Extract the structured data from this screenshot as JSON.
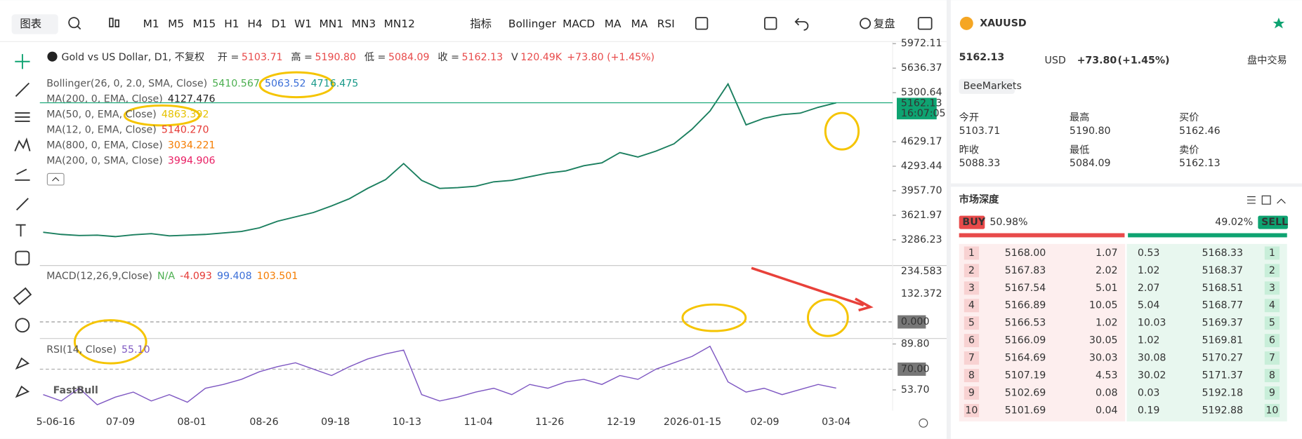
{
  "toolbar": {
    "chart_menu": "图表",
    "timeframes": [
      "M1",
      "M5",
      "M15",
      "H1",
      "H4",
      "D1",
      "W1",
      "MN1",
      "MN3",
      "MN12"
    ],
    "active_timeframe": "D1",
    "indicators_label": "指标",
    "indicators": [
      "Bollinger",
      "MACD",
      "MA",
      "MA",
      "RSI"
    ],
    "replay": "复盘"
  },
  "chart": {
    "symbol_title": "Gold vs US Dollar, D1, 不复权",
    "ohlc": [
      {
        "label": "开 =",
        "value": "5103.71"
      },
      {
        "label": "高 =",
        "value": "5190.80"
      },
      {
        "label": "低 =",
        "value": "5084.09"
      },
      {
        "label": "收 =",
        "value": "5162.13"
      },
      {
        "label": "V",
        "value": "120.49K"
      }
    ],
    "change": "+73.80 (+1.45%)",
    "overlays": [
      {
        "name": "Bollinger(26, 0, 2.0, SMA, Close)",
        "values": [
          "5410.567",
          "5063.52",
          "4716.475"
        ]
      },
      {
        "name": "MA(200, 0, EMA, Close)",
        "values": [
          "4127.476"
        ]
      },
      {
        "name": "MA(50, 0, EMA, Close)",
        "values": [
          "4863.392"
        ]
      },
      {
        "name": "MA(12, 0, EMA, Close)",
        "values": [
          "5140.270"
        ]
      },
      {
        "name": "MA(800, 0, EMA, Close)",
        "values": [
          "3034.221"
        ]
      },
      {
        "name": "MA(200, 0, SMA, Close)",
        "values": [
          "3994.906"
        ]
      }
    ],
    "price_ylim": [
      2934,
      6022
    ],
    "price_axis": [
      {
        "value": 5972.11,
        "label": "5972.11"
      },
      {
        "value": 5636.37,
        "label": "5636.37"
      },
      {
        "value": 5300.64,
        "label": "5300.64"
      },
      {
        "value": 4629.17,
        "label": "4629.17"
      },
      {
        "value": 4293.44,
        "label": "4293.44"
      },
      {
        "value": 3957.7,
        "label": "3957.70"
      },
      {
        "value": 3621.97,
        "label": "3621.97"
      },
      {
        "value": 3286.23,
        "label": "3286.23"
      }
    ],
    "current_price": 5162.13,
    "countdown": "16:07:05",
    "close_series": [
      3390,
      3360,
      3345,
      3350,
      3330,
      3355,
      3370,
      3340,
      3350,
      3360,
      3380,
      3400,
      3450,
      3540,
      3600,
      3660,
      3750,
      3850,
      3990,
      4110,
      4330,
      4100,
      3990,
      4000,
      4020,
      4080,
      4100,
      4150,
      4200,
      4230,
      4300,
      4340,
      4480,
      4420,
      4500,
      4600,
      4800,
      5050,
      5420,
      4860,
      4950,
      5000,
      5020,
      5100,
      5162.13
    ],
    "macd": {
      "name": "MACD(12,26,9,Close)",
      "values": [
        "N/A",
        "-4.093",
        "99.408",
        "103.501"
      ]
    },
    "macd_axis": [
      "234.583",
      "132.372",
      "0.000"
    ],
    "rsi": {
      "name": "RSI(14, Close)",
      "value": "55.10"
    },
    "rsi_axis": [
      {
        "value": 89.8,
        "label": "89.80"
      },
      {
        "value": 70,
        "label": "70.00"
      },
      {
        "value": 53.7,
        "label": "53.70"
      }
    ],
    "rsi_series": [
      50,
      45,
      55,
      42,
      48,
      52,
      45,
      50,
      44,
      55,
      58,
      62,
      68,
      72,
      75,
      70,
      65,
      72,
      78,
      82,
      85,
      50,
      45,
      48,
      52,
      55,
      50,
      58,
      55,
      60,
      62,
      58,
      65,
      62,
      70,
      75,
      80,
      88,
      60,
      52,
      55,
      50,
      54,
      58,
      55.1
    ],
    "dates": [
      "5-06-16",
      "07-09",
      "08-01",
      "08-26",
      "09-18",
      "10-13",
      "11-04",
      "11-26",
      "12-19",
      "2026-01-15",
      "02-09",
      "03-04"
    ],
    "watermark": "FastBull"
  },
  "quote": {
    "symbol": "XAUUSD",
    "price": "5162.13",
    "currency": "USD",
    "change": "+73.80",
    "change_pct": "(+1.45%)",
    "session": "盘中交易",
    "broker": "BeeMarkets",
    "stats": [
      {
        "label": "今开",
        "value": "5103.71"
      },
      {
        "label": "最高",
        "value": "5190.80"
      },
      {
        "label": "买价",
        "value": "5162.46"
      },
      {
        "label": "昨收",
        "value": "5088.33"
      },
      {
        "label": "最低",
        "value": "5084.09"
      },
      {
        "label": "卖价",
        "value": "5162.13"
      }
    ]
  },
  "depth": {
    "title": "市场深度",
    "buy_label": "BUY",
    "buy_pct": {
      "value": 50.98,
      "label": "50.98%"
    },
    "sell_pct": {
      "value": 49.02,
      "label": "49.02%"
    },
    "sell_label": "SELL",
    "bids": [
      [
        "1",
        "5168.00",
        "1.07"
      ],
      [
        "2",
        "5167.83",
        "2.02"
      ],
      [
        "3",
        "5167.54",
        "5.01"
      ],
      [
        "4",
        "5166.89",
        "10.05"
      ],
      [
        "5",
        "5166.53",
        "1.02"
      ],
      [
        "6",
        "5166.09",
        "30.05"
      ],
      [
        "7",
        "5164.69",
        "30.03"
      ],
      [
        "8",
        "5107.19",
        "4.53"
      ],
      [
        "9",
        "5102.69",
        "0.08"
      ],
      [
        "10",
        "5101.69",
        "0.04"
      ]
    ],
    "asks": [
      [
        "0.53",
        "5168.33",
        "1"
      ],
      [
        "1.02",
        "5168.37",
        "2"
      ],
      [
        "2.07",
        "5168.51",
        "3"
      ],
      [
        "5.04",
        "5168.77",
        "4"
      ],
      [
        "10.03",
        "5169.37",
        "5"
      ],
      [
        "1.02",
        "5169.81",
        "6"
      ],
      [
        "30.08",
        "5170.27",
        "7"
      ],
      [
        "30.02",
        "5171.37",
        "8"
      ],
      [
        "0.03",
        "5192.18",
        "9"
      ],
      [
        "0.19",
        "5192.88",
        "10"
      ]
    ]
  }
}
